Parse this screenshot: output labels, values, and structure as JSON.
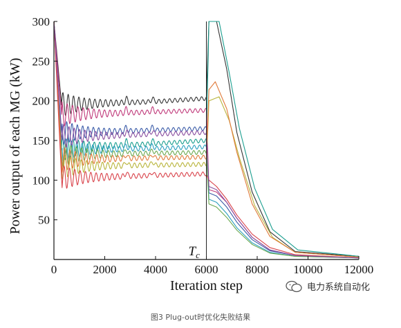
{
  "chart_data": {
    "type": "line",
    "title": "",
    "xlabel": "Iteration step",
    "ylabel": "Power output of each MG (kW)",
    "xlim": [
      0,
      12000
    ],
    "ylim": [
      0,
      300
    ],
    "xticks": [
      0,
      2000,
      4000,
      6000,
      8000,
      10000,
      12000
    ],
    "xtick_labels": [
      "0",
      "2000",
      "4000",
      "6000",
      "8000",
      "10000",
      "12000"
    ],
    "yticks": [
      50,
      100,
      150,
      200,
      250,
      300
    ],
    "ytick_labels": [
      "50",
      "100",
      "150",
      "200",
      "250",
      "300"
    ],
    "grid": false,
    "legend": "none",
    "annotation": "T_c",
    "annotation_x": 6000,
    "series_colors": [
      "#333333",
      "#1a9e8f",
      "#c0397a",
      "#3a5ba8",
      "#2a9fbe",
      "#6aa84f",
      "#b8b43a",
      "#e07a3a",
      "#d9434b",
      "#8a4fa0"
    ],
    "series": [
      {
        "color": "#333333",
        "x": [
          0,
          300,
          2000,
          4000,
          6000,
          6100,
          6400,
          6800,
          7200,
          7800,
          8500,
          9500,
          12000
        ],
        "values": [
          300,
          195,
          197,
          199,
          203,
          300,
          300,
          240,
          160,
          85,
          35,
          10,
          4
        ]
      },
      {
        "color": "#1a9e8f",
        "x": [
          0,
          300,
          2000,
          4000,
          6000,
          6100,
          6500,
          6900,
          7300,
          7900,
          8600,
          9600,
          12000
        ],
        "values": [
          300,
          140,
          143,
          146,
          150,
          300,
          300,
          235,
          165,
          90,
          38,
          12,
          4
        ]
      },
      {
        "color": "#c0397a",
        "x": [
          0,
          300,
          2000,
          4000,
          6000,
          6100,
          6400,
          6800,
          7200,
          7800,
          8500,
          9500,
          12000
        ],
        "values": [
          300,
          183,
          184,
          186,
          188,
          88,
          85,
          72,
          52,
          28,
          12,
          5,
          2
        ]
      },
      {
        "color": "#3a5ba8",
        "x": [
          0,
          300,
          2000,
          4000,
          6000,
          6100,
          6400,
          6800,
          7200,
          7800,
          8500,
          9500,
          12000
        ],
        "values": [
          300,
          160,
          161,
          163,
          165,
          84,
          80,
          66,
          47,
          25,
          11,
          5,
          2
        ]
      },
      {
        "color": "#2a9fbe",
        "x": [
          0,
          300,
          2000,
          4000,
          6000,
          6100,
          6400,
          6800,
          7200,
          7800,
          8500,
          9500,
          12000
        ],
        "values": [
          300,
          138,
          139,
          140,
          142,
          76,
          72,
          58,
          40,
          21,
          9,
          4,
          2
        ]
      },
      {
        "color": "#6aa84f",
        "x": [
          0,
          300,
          2000,
          4000,
          6000,
          6100,
          6400,
          6800,
          7200,
          7800,
          8500,
          9500,
          12000
        ],
        "values": [
          300,
          132,
          133,
          134,
          135,
          70,
          66,
          53,
          37,
          19,
          8,
          4,
          2
        ]
      },
      {
        "color": "#b8b43a",
        "x": [
          0,
          300,
          2000,
          4000,
          6000,
          6100,
          6500,
          6900,
          7300,
          7900,
          8600,
          9500,
          12000
        ],
        "values": [
          300,
          117,
          118,
          119,
          120,
          200,
          205,
          175,
          128,
          68,
          28,
          9,
          3
        ]
      },
      {
        "color": "#e07a3a",
        "x": [
          0,
          300,
          2000,
          4000,
          6000,
          6100,
          6350,
          6800,
          7200,
          7800,
          8500,
          9500,
          12000
        ],
        "values": [
          300,
          126,
          127,
          128,
          129,
          214,
          224,
          190,
          135,
          70,
          29,
          9,
          3
        ]
      },
      {
        "color": "#d9434b",
        "x": [
          0,
          300,
          2000,
          4000,
          6000,
          6100,
          6400,
          6800,
          7200,
          7800,
          8500,
          9500,
          12000
        ],
        "values": [
          300,
          103,
          104,
          106,
          108,
          100,
          92,
          76,
          56,
          32,
          15,
          6,
          2
        ]
      },
      {
        "color": "#8a4fa0",
        "x": [
          0,
          300,
          2000,
          4000,
          6000,
          6100,
          6400,
          6800,
          7200,
          7800,
          8500,
          9500,
          12000
        ],
        "values": [
          300,
          155,
          156,
          158,
          160,
          92,
          88,
          72,
          52,
          28,
          12,
          5,
          2
        ]
      }
    ]
  },
  "watermark": {
    "text": "电力系统自动化",
    "icon": "wechat-icon"
  },
  "caption": "图3 Plug-out时优化失败结果"
}
